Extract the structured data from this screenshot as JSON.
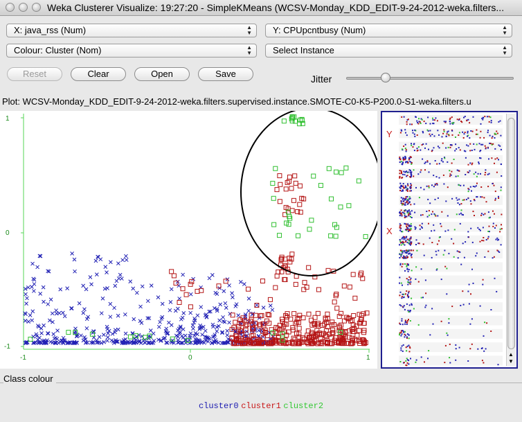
{
  "window": {
    "title": "Weka Clusterer Visualize: 19:27:20 - SimpleKMeans (WCSV-Monday_KDD_EDIT-9-24-2012-weka.filters..."
  },
  "controls": {
    "x_axis": "X: java_rss (Num)",
    "y_axis": "Y: CPUpcntbusy (Num)",
    "colour": "Colour: Cluster (Nom)",
    "select": "Select Instance",
    "reset_label": "Reset",
    "clear_label": "Clear",
    "open_label": "Open",
    "save_label": "Save",
    "jitter_label": "Jitter",
    "jitter_value": 0.22
  },
  "plot": {
    "title": "Plot: WCSV-Monday_KDD_EDIT-9-24-2012-weka.filters.supervised.instance.SMOTE-C0-K5-P200.0-S1-weka.filters.u",
    "y_ticks": [
      "1",
      "0",
      "-1"
    ],
    "x_ticks": [
      "-1",
      "0",
      "1"
    ]
  },
  "side": {
    "y_marker": "Y",
    "x_marker": "X"
  },
  "class_colour": {
    "title": "Class colour",
    "items": [
      {
        "label": "cluster0",
        "color": "#1a1ab0"
      },
      {
        "label": "cluster1",
        "color": "#c81818"
      },
      {
        "label": "cluster2",
        "color": "#33c833"
      }
    ]
  },
  "colors": {
    "axis": "#55d655",
    "cluster0": "#2020b4",
    "cluster1": "#b41414",
    "cluster2": "#2fbf2f"
  }
}
